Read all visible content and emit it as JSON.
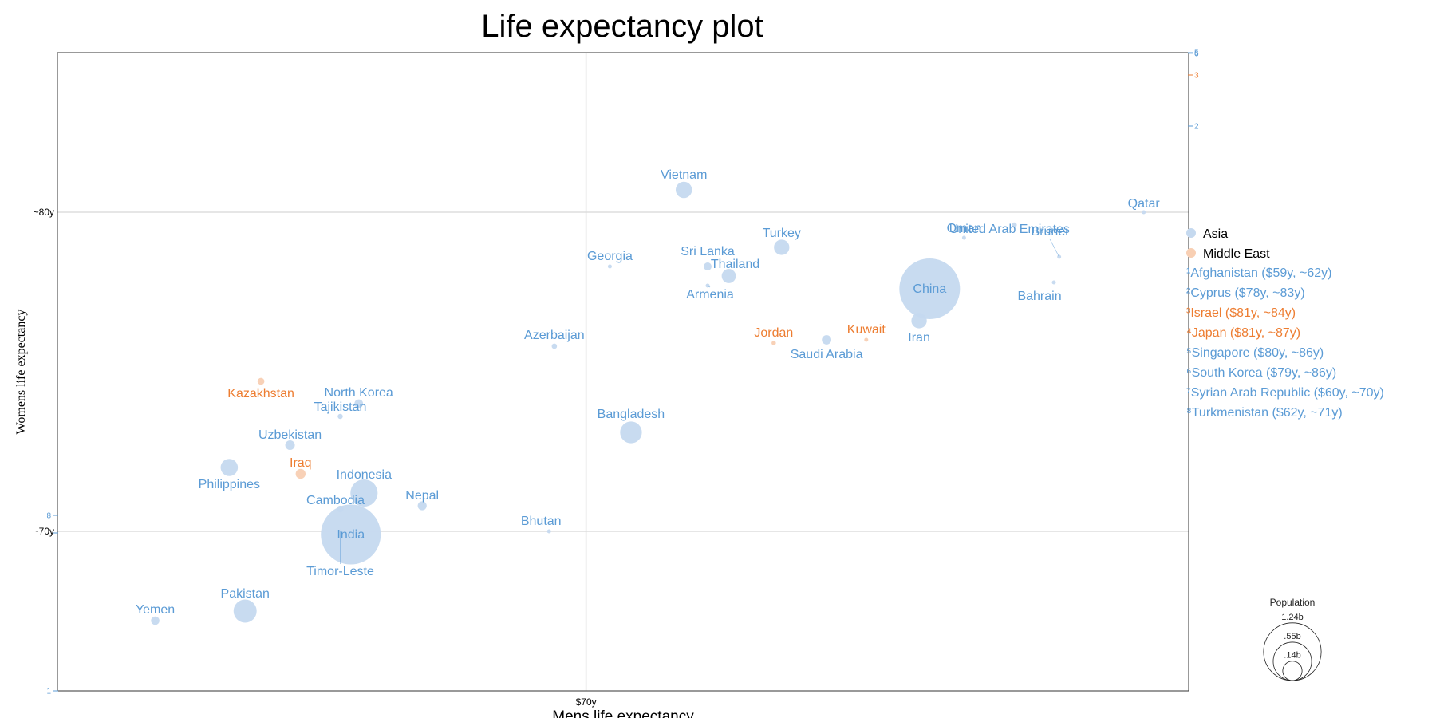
{
  "chart_data": {
    "type": "scatter",
    "title": "Life expectancy plot",
    "xlabel": "Mens life expectancy",
    "ylabel": "Womens life expectancy",
    "xlim": [
      60.0,
      81.4
    ],
    "ylim": [
      65.0,
      85.0
    ],
    "x_ticks": [
      {
        "value": 70.0,
        "label": "$70y"
      }
    ],
    "y_ticks": [
      {
        "value": 70.0,
        "label": "~70y"
      },
      {
        "value": 80.0,
        "label": "~80y"
      }
    ],
    "grid": true,
    "legend_position": "right",
    "colors": {
      "Asia": "#5b9bd5",
      "Middle East": "#ed7d31",
      "Asia_fill": "#c5d9ef",
      "Middle East_fill": "#f8cfb3"
    },
    "series": [
      {
        "name": "Asia",
        "points": [
          {
            "label": "Vietnam",
            "x": 71.85,
            "y": 80.7,
            "pop": 0.09
          },
          {
            "label": "Qatar",
            "x": 80.55,
            "y": 80.0,
            "pop": 0.002
          },
          {
            "label": "United Arab Emirates",
            "x": 78.1,
            "y": 79.6,
            "pop": 0.009
          },
          {
            "label": "Oman",
            "x": 77.15,
            "y": 79.2,
            "pop": 0.004
          },
          {
            "label": "Brunei",
            "x": 78.95,
            "y": 78.6,
            "pop": 0.0004
          },
          {
            "label": "Bahrain",
            "x": 78.85,
            "y": 77.8,
            "pop": 0.0013
          },
          {
            "label": "Turkey",
            "x": 73.7,
            "y": 78.9,
            "pop": 0.08
          },
          {
            "label": "Georgia",
            "x": 70.45,
            "y": 78.3,
            "pop": 0.004
          },
          {
            "label": "Sri Lanka",
            "x": 72.3,
            "y": 78.3,
            "pop": 0.021
          },
          {
            "label": "Thailand",
            "x": 72.7,
            "y": 78.0,
            "pop": 0.068
          },
          {
            "label": "Armenia",
            "x": 72.3,
            "y": 77.7,
            "pop": 0.003
          },
          {
            "label": "China",
            "x": 76.5,
            "y": 77.6,
            "pop": 1.24
          },
          {
            "label": "Iran",
            "x": 76.3,
            "y": 76.6,
            "pop": 0.08
          },
          {
            "label": "Saudi Arabia",
            "x": 74.55,
            "y": 76.0,
            "pop": 0.03
          },
          {
            "label": "Azerbaijan",
            "x": 69.4,
            "y": 75.8,
            "pop": 0.0095
          },
          {
            "label": "North Korea",
            "x": 65.7,
            "y": 74.0,
            "pop": 0.025
          },
          {
            "label": "Tajikistan",
            "x": 65.35,
            "y": 73.6,
            "pop": 0.009
          },
          {
            "label": "Uzbekistan",
            "x": 64.4,
            "y": 72.7,
            "pop": 0.031
          },
          {
            "label": "Bangladesh",
            "x": 70.85,
            "y": 73.1,
            "pop": 0.16
          },
          {
            "label": "Philippines",
            "x": 63.25,
            "y": 72.0,
            "pop": 0.1
          },
          {
            "label": "Indonesia",
            "x": 65.8,
            "y": 71.2,
            "pop": 0.25
          },
          {
            "label": "Cambodia",
            "x": 65.35,
            "y": 70.7,
            "pop": 0.015
          },
          {
            "label": "Nepal",
            "x": 66.9,
            "y": 70.8,
            "pop": 0.027
          },
          {
            "label": "India",
            "x": 65.55,
            "y": 69.9,
            "pop": 1.21
          },
          {
            "label": "Timor-Leste",
            "x": 65.35,
            "y": 70.0,
            "pop": 0.001
          },
          {
            "label": "Bhutan",
            "x": 69.3,
            "y": 70.0,
            "pop": 0.0007
          },
          {
            "label": "Pakistan",
            "x": 63.55,
            "y": 67.5,
            "pop": 0.18
          },
          {
            "label": "Yemen",
            "x": 61.85,
            "y": 67.2,
            "pop": 0.024
          }
        ]
      },
      {
        "name": "Middle East",
        "points": [
          {
            "label": "Jordan",
            "x": 73.55,
            "y": 75.9,
            "pop": 0.0065
          },
          {
            "label": "Kuwait",
            "x": 75.3,
            "y": 76.0,
            "pop": 0.003
          },
          {
            "label": "Kazakhstan",
            "x": 63.85,
            "y": 74.7,
            "pop": 0.016
          },
          {
            "label": "Iraq",
            "x": 64.6,
            "y": 71.8,
            "pop": 0.033
          }
        ]
      }
    ],
    "right_axis_markers": [
      {
        "label": "6",
        "y": 84.98,
        "series": "Asia"
      },
      {
        "label": "5",
        "y": 85.0,
        "series": "Asia"
      },
      {
        "label": "3",
        "y": 84.3,
        "series": "Middle East"
      },
      {
        "label": "2",
        "y": 82.7,
        "series": "Asia"
      }
    ],
    "left_axis_markers": [
      {
        "label": "8",
        "y": 70.5,
        "series": "Asia"
      },
      {
        "label": "7",
        "y": 69.95,
        "series": "Asia"
      },
      {
        "label": "1",
        "y": 65.0,
        "series": "Asia"
      }
    ],
    "legend": [
      {
        "name": "Asia",
        "series": "Asia"
      },
      {
        "name": "Middle East",
        "series": "Middle East"
      }
    ],
    "footnotes": [
      {
        "text": "¹Afghanistan ($59y, ~62y)",
        "series": "Asia"
      },
      {
        "text": "²Cyprus ($78y, ~83y)",
        "series": "Asia"
      },
      {
        "text": "³Israel ($81y, ~84y)",
        "series": "Middle East"
      },
      {
        "text": "⁴Japan ($81y, ~87y)",
        "series": "Middle East"
      },
      {
        "text": "⁵Singapore ($80y, ~86y)",
        "series": "Asia"
      },
      {
        "text": "⁶South Korea ($79y, ~86y)",
        "series": "Asia"
      },
      {
        "text": "⁷Syrian Arab Republic ($60y, ~70y)",
        "series": "Asia"
      },
      {
        "text": "⁸Turkmenistan ($62y, ~71y)",
        "series": "Asia"
      }
    ],
    "size_legend": {
      "title": "Population",
      "items": [
        {
          "label": "1.24b",
          "pop": 1.24
        },
        {
          "label": ".55b",
          "pop": 0.55
        },
        {
          "label": ".14b",
          "pop": 0.14
        }
      ]
    }
  }
}
